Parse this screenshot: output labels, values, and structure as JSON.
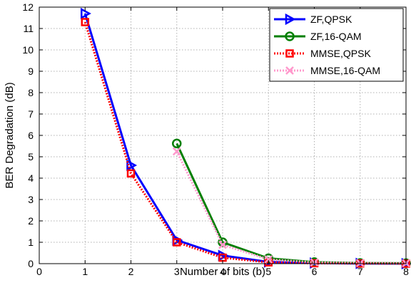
{
  "chart_data": {
    "type": "line",
    "title": "",
    "xlabel": "Number of bits (b)",
    "ylabel": "BER Degradation (dB)",
    "xlim": [
      0,
      8
    ],
    "ylim": [
      0,
      12
    ],
    "xticks": [
      0,
      1,
      2,
      3,
      4,
      5,
      6,
      7,
      8
    ],
    "yticks": [
      0,
      1,
      2,
      3,
      4,
      5,
      6,
      7,
      8,
      9,
      10,
      11,
      12
    ],
    "grid": true,
    "legend_position": "top-right",
    "series": [
      {
        "name": "ZF,QPSK",
        "color": "#0000ff",
        "line_style": "solid",
        "marker": "triangle-right",
        "x": [
          1,
          2,
          3,
          4,
          5,
          6,
          7,
          8
        ],
        "y": [
          11.7,
          4.6,
          1.1,
          0.38,
          0.08,
          0.03,
          0.01,
          0.0
        ]
      },
      {
        "name": "ZF,16-QAM",
        "color": "#007f00",
        "line_style": "solid",
        "marker": "circle",
        "x": [
          3,
          4,
          5,
          6,
          7,
          8
        ],
        "y": [
          5.62,
          1.0,
          0.25,
          0.07,
          0.03,
          0.02
        ]
      },
      {
        "name": "MMSE,QPSK",
        "color": "#ff0000",
        "line_style": "dotted",
        "marker": "square",
        "x": [
          1,
          2,
          3,
          4,
          5,
          6,
          7,
          8
        ],
        "y": [
          11.3,
          4.22,
          1.0,
          0.28,
          0.06,
          0.02,
          0.01,
          0.0
        ]
      },
      {
        "name": "MMSE,16-QAM",
        "color": "#ff99cc",
        "line_style": "dotted",
        "marker": "x",
        "x": [
          3,
          4,
          5,
          6,
          7,
          8
        ],
        "y": [
          5.25,
          0.88,
          0.2,
          0.06,
          0.03,
          0.02
        ]
      }
    ]
  }
}
